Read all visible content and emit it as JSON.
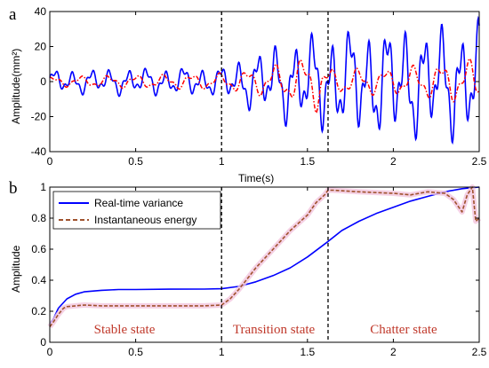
{
  "chart_data": [
    {
      "panel": "a",
      "type": "line",
      "xlabel": "Time(s)",
      "ylabel": "Amplitude(mm²)",
      "xlim": [
        0,
        2.5
      ],
      "ylim": [
        -40,
        40
      ],
      "x_ticks": [
        "0",
        "0.5",
        "1",
        "1.5",
        "2",
        "2.5"
      ],
      "y_ticks": [
        "-40",
        "-20",
        "0",
        "20",
        "40"
      ],
      "vlines_x": [
        1.0,
        1.62
      ],
      "grid": false,
      "series": [
        {
          "color": "#0000ff",
          "style": "solid",
          "envelope_t": [
            0,
            0.5,
            1.0,
            1.2,
            1.4,
            1.62,
            1.8,
            2.0,
            2.2,
            2.5
          ],
          "envelope_amp": [
            7,
            8,
            9,
            18,
            25,
            30,
            32,
            34,
            33,
            35
          ]
        },
        {
          "color": "#ff0000",
          "style": "dash-dot",
          "envelope_t": [
            0,
            0.5,
            1.0,
            1.2,
            1.4,
            1.55,
            1.62,
            2.0,
            2.5
          ],
          "envelope_amp": [
            3,
            4,
            5,
            8,
            12,
            18,
            8,
            8,
            14
          ]
        }
      ]
    },
    {
      "panel": "b",
      "type": "line",
      "xlabel": "",
      "ylabel": "Amplitude",
      "xlim": [
        0,
        2.5
      ],
      "ylim": [
        0,
        1
      ],
      "x_ticks": [
        "0",
        "0.5",
        "1",
        "1.5",
        "2",
        "2.5"
      ],
      "y_ticks": [
        "0",
        "0.2",
        "0.4",
        "0.6",
        "0.8",
        "1"
      ],
      "vlines_x": [
        1.0,
        1.62
      ],
      "legend_position": "top-left",
      "annotations": [
        "Stable state",
        "Transition state",
        "Chatter state"
      ],
      "series": [
        {
          "name": "Real-time variance",
          "color": "#0000ff",
          "style": "solid",
          "x": [
            0,
            0.02,
            0.05,
            0.1,
            0.15,
            0.2,
            0.3,
            0.4,
            0.5,
            0.7,
            0.9,
            1.0,
            1.1,
            1.2,
            1.3,
            1.4,
            1.5,
            1.62,
            1.7,
            1.8,
            1.9,
            2.0,
            2.1,
            2.2,
            2.3,
            2.4,
            2.5
          ],
          "y": [
            0.12,
            0.15,
            0.22,
            0.28,
            0.31,
            0.325,
            0.335,
            0.34,
            0.34,
            0.342,
            0.343,
            0.345,
            0.36,
            0.39,
            0.43,
            0.48,
            0.55,
            0.65,
            0.72,
            0.78,
            0.83,
            0.87,
            0.91,
            0.94,
            0.97,
            0.99,
            1.0
          ]
        },
        {
          "name": "Instantaneous energy",
          "color": "#a0522d",
          "style": "dashed",
          "x": [
            0,
            0.02,
            0.05,
            0.08,
            0.1,
            0.15,
            0.2,
            0.3,
            0.5,
            0.7,
            0.9,
            1.0,
            1.05,
            1.1,
            1.15,
            1.2,
            1.3,
            1.4,
            1.5,
            1.55,
            1.6,
            1.62,
            1.65,
            1.8,
            2.0,
            2.1,
            2.2,
            2.3,
            2.35,
            2.4,
            2.43,
            2.46,
            2.48,
            2.5
          ],
          "y": [
            0.1,
            0.13,
            0.18,
            0.22,
            0.23,
            0.235,
            0.24,
            0.235,
            0.235,
            0.235,
            0.235,
            0.24,
            0.28,
            0.34,
            0.41,
            0.48,
            0.6,
            0.72,
            0.82,
            0.9,
            0.95,
            0.98,
            0.98,
            0.97,
            0.96,
            0.95,
            0.97,
            0.96,
            0.92,
            0.84,
            0.95,
            1.0,
            0.78,
            0.8
          ]
        }
      ]
    }
  ],
  "labels": {
    "panel_a": "a",
    "panel_b": "b"
  }
}
